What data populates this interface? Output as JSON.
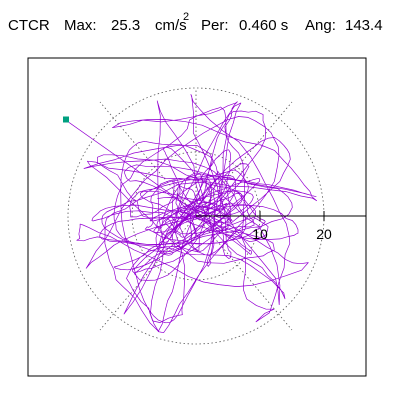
{
  "header": {
    "station": "CTCR",
    "max_label": "Max:",
    "max_value": "25.3",
    "max_unit": "cm/s",
    "max_unit_exponent": "2",
    "period_label": "Per:",
    "period_value": "0.460 s",
    "angle_label": "Ang:",
    "angle_value": "143.4"
  },
  "plot": {
    "ring_labels": [
      "10",
      "20"
    ],
    "trace_color": "#9400d3",
    "grid_color": "#555555",
    "marker_color": "#00a080",
    "peak_marker": {
      "magnitude": 25.3,
      "angle_deg": 143.4
    }
  }
}
